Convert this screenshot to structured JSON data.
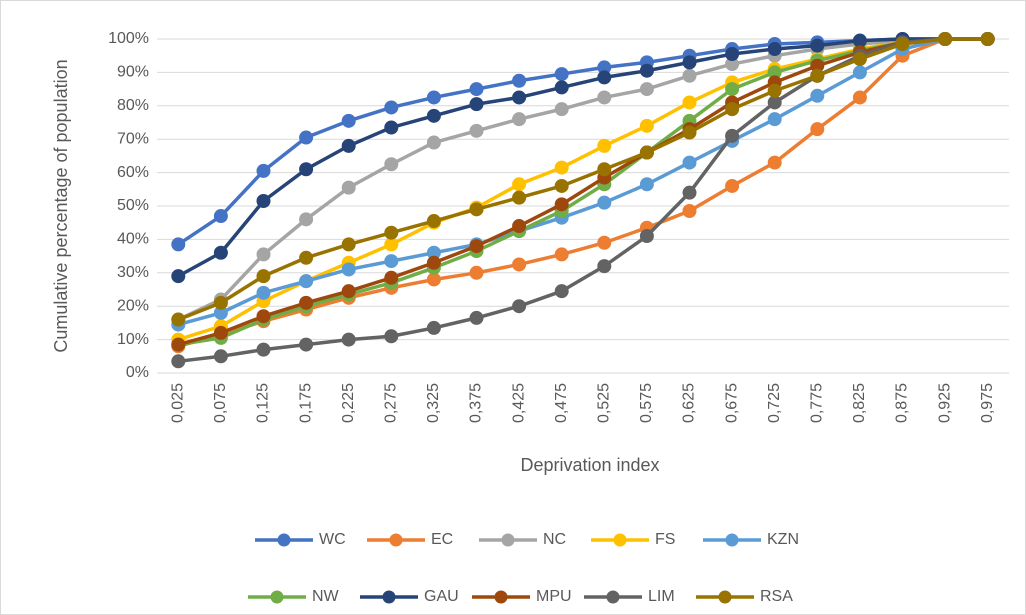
{
  "chart_data": {
    "type": "line",
    "x_label": "Deprivation index",
    "y_label": "Cumulative percentage of population",
    "categories": [
      "0,025",
      "0,075",
      "0,125",
      "0,175",
      "0,225",
      "0,275",
      "0,325",
      "0,375",
      "0,425",
      "0,475",
      "0,525",
      "0,575",
      "0,625",
      "0,675",
      "0,725",
      "0,775",
      "0,825",
      "0,875",
      "0,925",
      "0,975"
    ],
    "ylim": [
      0,
      100
    ],
    "yticks": [
      {
        "value": 0,
        "label": "0%"
      },
      {
        "value": 10,
        "label": "10%"
      },
      {
        "value": 20,
        "label": "20%"
      },
      {
        "value": 30,
        "label": "30%"
      },
      {
        "value": 40,
        "label": "40%"
      },
      {
        "value": 50,
        "label": "50%"
      },
      {
        "value": 60,
        "label": "60%"
      },
      {
        "value": 70,
        "label": "70%"
      },
      {
        "value": 80,
        "label": "80%"
      },
      {
        "value": 90,
        "label": "90%"
      },
      {
        "value": 100,
        "label": "100%"
      }
    ],
    "grid": true,
    "legend": "bottom",
    "series": [
      {
        "name": "WC",
        "color": "#4472c4",
        "values": [
          38.5,
          47,
          60.5,
          70.5,
          75.5,
          79.5,
          82.5,
          85,
          87.5,
          89.5,
          91.5,
          93,
          95,
          97,
          98.5,
          99,
          99.5,
          100,
          100,
          100
        ]
      },
      {
        "name": "EC",
        "color": "#ed7d31",
        "values": [
          8,
          11.5,
          15.5,
          19,
          22.5,
          25.5,
          28,
          30,
          32.5,
          35.5,
          39,
          43.5,
          48.5,
          56,
          63,
          73,
          82.5,
          95,
          100,
          100
        ]
      },
      {
        "name": "NC",
        "color": "#a5a5a5",
        "values": [
          16,
          22,
          35.5,
          46,
          55.5,
          62.5,
          69,
          72.5,
          76,
          79,
          82.5,
          85,
          89,
          92.5,
          95,
          97,
          98.5,
          99.5,
          100,
          100
        ]
      },
      {
        "name": "FS",
        "color": "#ffc000",
        "values": [
          10,
          14,
          21.5,
          27.5,
          33,
          38.5,
          45,
          49.5,
          56.5,
          61.5,
          68,
          74,
          81,
          87,
          91,
          94,
          97,
          99,
          100,
          100
        ]
      },
      {
        "name": "KZN",
        "color": "#5b9bd5",
        "values": [
          14.5,
          18,
          24,
          27.5,
          31,
          33.5,
          36,
          38.5,
          42.5,
          46.5,
          51,
          56.5,
          63,
          69.5,
          76,
          83,
          90,
          97,
          100,
          100
        ]
      },
      {
        "name": "NW",
        "color": "#70ad47",
        "values": [
          8.5,
          10.5,
          16,
          20,
          23.5,
          27,
          31.5,
          36.5,
          42.5,
          48.5,
          56.5,
          66,
          75.5,
          85,
          90,
          93.5,
          96.5,
          99,
          100,
          100
        ]
      },
      {
        "name": "GAU",
        "color": "#264478",
        "values": [
          29,
          36,
          51.5,
          61,
          68,
          73.5,
          77,
          80.5,
          82.5,
          85.5,
          88.5,
          90.5,
          93,
          95.5,
          97,
          98,
          99.5,
          100,
          100,
          100
        ]
      },
      {
        "name": "MPU",
        "color": "#9e480e",
        "values": [
          8.5,
          12,
          17,
          21,
          24.5,
          28.5,
          33,
          38,
          44,
          50.5,
          58.5,
          66,
          73,
          81,
          87,
          92,
          96,
          99,
          100,
          100
        ]
      },
      {
        "name": "LIM",
        "color": "#636363",
        "values": [
          3.5,
          5,
          7,
          8.5,
          10,
          11,
          13.5,
          16.5,
          20,
          24.5,
          32,
          41,
          54,
          71,
          81,
          89,
          95,
          99,
          100,
          100
        ]
      },
      {
        "name": "RSA",
        "color": "#997300",
        "values": [
          16,
          21,
          29,
          34.5,
          38.5,
          42,
          45.5,
          49,
          52.5,
          56,
          61,
          66,
          72,
          79,
          84.5,
          89,
          94,
          98.5,
          100,
          100
        ]
      }
    ]
  }
}
